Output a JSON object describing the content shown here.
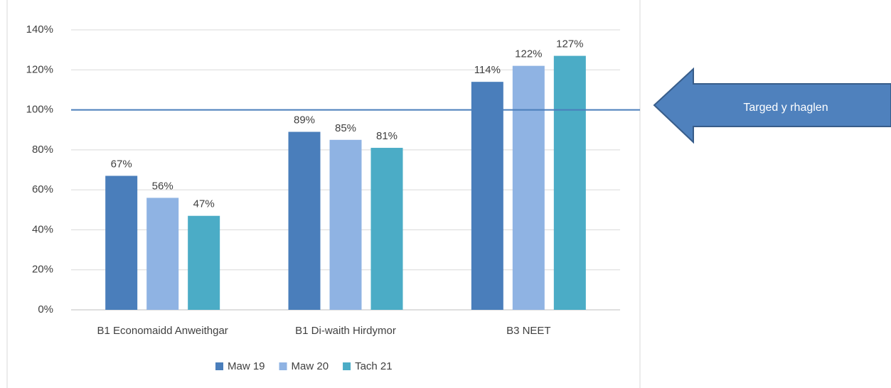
{
  "chart_data": {
    "type": "bar",
    "categories": [
      "B1 Economaidd Anweithgar",
      "B1 Di-waith Hirdymor",
      "B3 NEET"
    ],
    "series": [
      {
        "name": "Maw 19",
        "color": "#4a7ebb",
        "values": [
          67,
          89,
          114
        ],
        "value_labels": [
          "67%",
          "89%",
          "114%"
        ]
      },
      {
        "name": "Maw 20",
        "color": "#8fb3e3",
        "values": [
          56,
          85,
          122
        ],
        "value_labels": [
          "56%",
          "85%",
          "122%"
        ]
      },
      {
        "name": "Tach 21",
        "color": "#4bacc6",
        "values": [
          47,
          81,
          127
        ],
        "value_labels": [
          "47%",
          "81%",
          "127%"
        ]
      }
    ],
    "ylim": [
      0,
      140
    ],
    "yticks": [
      {
        "value": 0,
        "label": "0%"
      },
      {
        "value": 20,
        "label": "20%"
      },
      {
        "value": 40,
        "label": "40%"
      },
      {
        "value": 60,
        "label": "60%"
      },
      {
        "value": 80,
        "label": "80%"
      },
      {
        "value": 100,
        "label": "100%"
      },
      {
        "value": 120,
        "label": "120%"
      },
      {
        "value": 140,
        "label": "140%"
      }
    ],
    "grid": true,
    "legend": "bottom",
    "target": {
      "value": 100,
      "label": "Targed y rhaglen",
      "color": "#4a7ebb"
    }
  }
}
